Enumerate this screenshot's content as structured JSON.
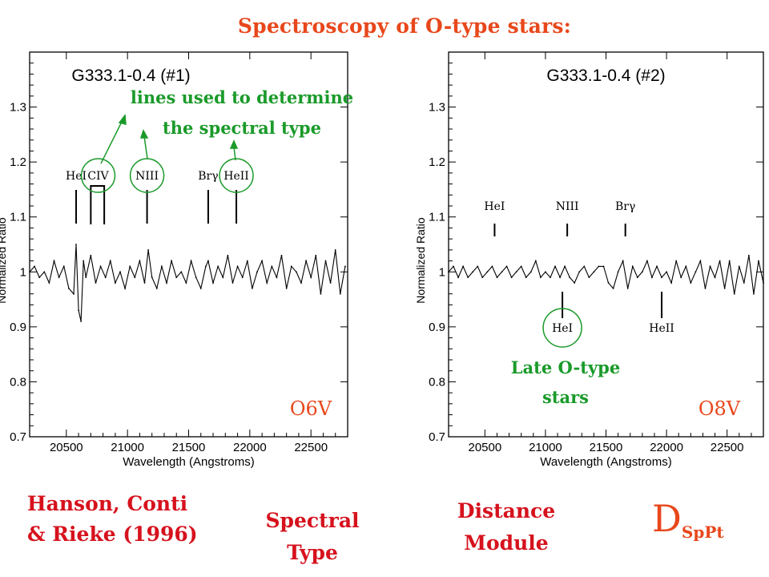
{
  "slide": {
    "title": "Spectroscopy of O-type stars:",
    "left_caption": [
      "Hanson, Conti",
      "& Rieke (1996)"
    ],
    "middle_caption": [
      "Spectral",
      "Type"
    ],
    "right_caption": [
      "Distance",
      "Module"
    ],
    "symbol": {
      "main": "D",
      "subscript": "SpPt"
    },
    "annotation_lines": [
      "lines used to determine",
      "the spectral type"
    ],
    "annotation_late": [
      "Late O-type",
      "stars"
    ]
  },
  "colors": {
    "title": "#e8471b",
    "caption": "#d6121d",
    "annotation_green": "#1a9a2a",
    "type_label": "#e8471b",
    "spectrum": "#000000"
  },
  "chart_data": [
    {
      "type": "line",
      "title": "G333.1-0.4 (#1)",
      "xlabel": "Wavelength (Angstroms)",
      "ylabel": "Normalized Ratio",
      "xlim": [
        20200,
        22800
      ],
      "ylim": [
        0.7,
        1.4
      ],
      "xticks": [
        20500,
        21000,
        21500,
        22000,
        22500
      ],
      "yticks": [
        0.7,
        0.8,
        0.9,
        1,
        1.1,
        1.2,
        1.3
      ],
      "spectral_type": "O6V",
      "line_markers": [
        {
          "label": "HeI",
          "x": 20580,
          "position": "above",
          "circled": false
        },
        {
          "label": "CIV",
          "x": 20760,
          "position": "above",
          "circled": true,
          "bracket": [
            20700,
            20810
          ]
        },
        {
          "label": "NIII",
          "x": 21160,
          "position": "above",
          "circled": true
        },
        {
          "label": "Brγ",
          "x": 21660,
          "position": "above",
          "circled": false
        },
        {
          "label": "HeII",
          "x": 21890,
          "position": "above",
          "circled": true
        }
      ],
      "series": [
        {
          "x": [
            20200,
            20240,
            20280,
            20320,
            20360,
            20400,
            20440,
            20480,
            20520,
            20560,
            20580,
            20600,
            20620,
            20640,
            20660,
            20700,
            20740,
            20780,
            20820,
            20860,
            20900,
            20940,
            20980,
            21020,
            21060,
            21100,
            21140,
            21170,
            21200,
            21240,
            21280,
            21320,
            21360,
            21400,
            21440,
            21480,
            21520,
            21560,
            21600,
            21640,
            21660,
            21700,
            21740,
            21780,
            21820,
            21860,
            21900,
            21940,
            21980,
            22020,
            22060,
            22100,
            22140,
            22180,
            22220,
            22260,
            22300,
            22340,
            22380,
            22420,
            22460,
            22500,
            22540,
            22580,
            22620,
            22660,
            22700,
            22740,
            22780
          ],
          "values": [
            1.0,
            1.01,
            0.99,
            1.0,
            0.98,
            1.02,
            0.99,
            1.01,
            0.97,
            0.96,
            1.05,
            0.93,
            0.91,
            1.02,
            0.99,
            1.03,
            0.98,
            1.01,
            0.99,
            1.02,
            0.98,
            1.0,
            0.97,
            1.01,
            0.99,
            1.02,
            0.98,
            1.04,
            0.99,
            0.97,
            1.01,
            0.98,
            1.02,
            0.99,
            1.0,
            0.98,
            1.02,
            0.99,
            0.97,
            1.01,
            1.02,
            0.98,
            1.01,
            0.99,
            1.03,
            0.98,
            1.01,
            0.99,
            1.02,
            0.97,
            1.0,
            1.02,
            0.98,
            1.01,
            0.99,
            1.03,
            0.97,
            1.01,
            1.0,
            0.98,
            1.02,
            0.99,
            1.03,
            0.96,
            1.02,
            0.98,
            1.04,
            0.96,
            1.01
          ]
        }
      ]
    },
    {
      "type": "line",
      "title": "G333.1-0.4 (#2)",
      "xlabel": "Wavelength (Angstroms)",
      "ylabel": "Normalized Ratio",
      "xlim": [
        20200,
        22800
      ],
      "ylim": [
        0.7,
        1.4
      ],
      "xticks": [
        20500,
        21000,
        21500,
        22000,
        22500
      ],
      "yticks": [
        0.7,
        0.8,
        0.9,
        1,
        1.1,
        1.2,
        1.3
      ],
      "spectral_type": "O8V",
      "line_markers": [
        {
          "label": "HeI",
          "x": 20580,
          "position": "above",
          "circled": false
        },
        {
          "label": "NIII",
          "x": 21180,
          "position": "above",
          "circled": false
        },
        {
          "label": "Brγ",
          "x": 21660,
          "position": "above",
          "circled": false
        },
        {
          "label": "HeI",
          "x": 21140,
          "position": "below",
          "circled": true
        },
        {
          "label": "HeII",
          "x": 21960,
          "position": "below",
          "circled": false
        }
      ],
      "series": [
        {
          "x": [
            20200,
            20240,
            20280,
            20320,
            20360,
            20400,
            20440,
            20480,
            20520,
            20560,
            20600,
            20640,
            20680,
            20720,
            20760,
            20800,
            20840,
            20880,
            20920,
            20960,
            21000,
            21040,
            21080,
            21120,
            21160,
            21200,
            21240,
            21280,
            21320,
            21360,
            21400,
            21440,
            21480,
            21520,
            21560,
            21600,
            21640,
            21680,
            21720,
            21760,
            21800,
            21840,
            21880,
            21920,
            21960,
            22000,
            22040,
            22080,
            22120,
            22160,
            22200,
            22240,
            22280,
            22320,
            22360,
            22400,
            22440,
            22480,
            22520,
            22560,
            22600,
            22640,
            22680,
            22720,
            22760,
            22800
          ],
          "values": [
            1.0,
            1.01,
            0.99,
            1.01,
            0.99,
            1.0,
            1.01,
            0.99,
            1.0,
            1.01,
            0.99,
            1.0,
            1.01,
            0.99,
            1.0,
            1.01,
            0.99,
            1.0,
            1.02,
            0.99,
            1.0,
            0.99,
            1.01,
            0.99,
            1.01,
            0.99,
            0.98,
            1.0,
            1.01,
            0.99,
            1.0,
            1.01,
            1.01,
            0.98,
            0.97,
            1.0,
            1.02,
            0.97,
            1.01,
            0.99,
            1.0,
            1.02,
            0.99,
            1.01,
            0.99,
            1.0,
            0.98,
            1.02,
            0.99,
            1.01,
            0.98,
            1.0,
            1.02,
            0.97,
            1.01,
            0.99,
            1.02,
            0.97,
            1.02,
            0.96,
            1.01,
            0.98,
            1.03,
            0.96,
            1.02,
            0.98
          ]
        }
      ]
    }
  ]
}
